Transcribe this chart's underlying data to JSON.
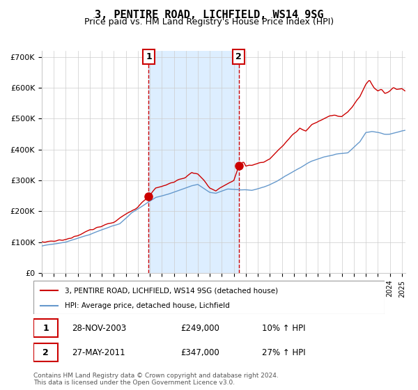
{
  "title": "3, PENTIRE ROAD, LICHFIELD, WS14 9SG",
  "subtitle": "Price paid vs. HM Land Registry's House Price Index (HPI)",
  "sale1_date": "28-NOV-2003",
  "sale1_price": 249000,
  "sale1_label": "1",
  "sale1_year": 2003.91,
  "sale2_date": "27-MAY-2011",
  "sale2_price": 347000,
  "sale2_label": "2",
  "sale2_year": 2011.4,
  "legend_line1": "3, PENTIRE ROAD, LICHFIELD, WS14 9SG (detached house)",
  "legend_line2": "HPI: Average price, detached house, Lichfield",
  "table_row1": "28-NOV-2003    £249,000    10% ↑ HPI",
  "table_row2": "27-MAY-2011    £347,000    27% ↑ HPI",
  "footer": "Contains HM Land Registry data © Crown copyright and database right 2024.\nThis data is licensed under the Open Government Licence v3.0.",
  "red_color": "#cc0000",
  "blue_color": "#6699cc",
  "bg_shade_color": "#ddeeff",
  "grid_color": "#cccccc",
  "ylim": [
    0,
    720000
  ],
  "xlim_start": 1995.0,
  "xlim_end": 2025.3
}
